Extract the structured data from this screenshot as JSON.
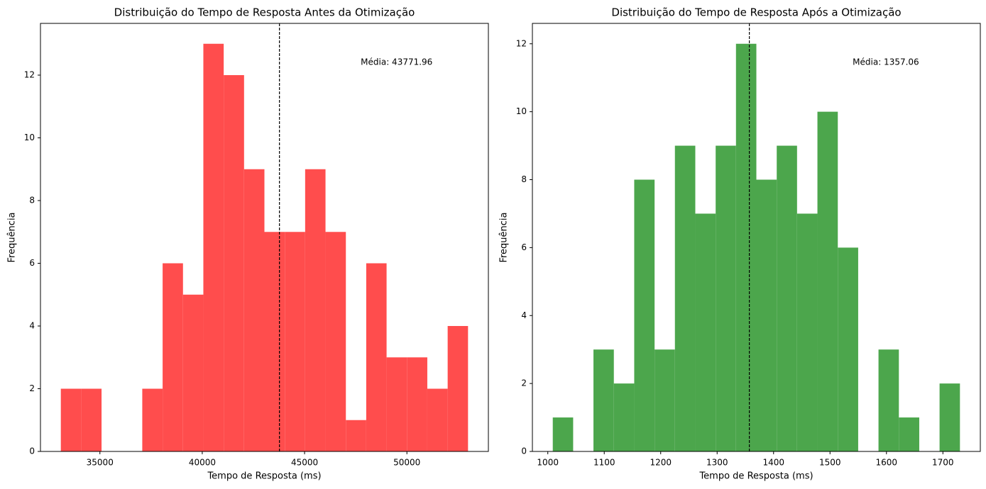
{
  "chart_data": [
    {
      "type": "histogram",
      "title": "Distribuição do Tempo de Resposta Antes da Otimização",
      "xlabel": "Tempo de Resposta (ms)",
      "ylabel": "Frequência",
      "bins": [
        33090,
        34084.8,
        35079.6,
        36074.4,
        37069.2,
        38064,
        39058.8,
        40053.6,
        41048.4,
        42043.2,
        43038,
        44032.8,
        45027.6,
        46022.4,
        47017.2,
        48012,
        49006.8,
        50001.6,
        50996.4,
        51991.2,
        52986
      ],
      "counts": [
        2,
        2,
        0,
        0,
        2,
        6,
        5,
        13,
        12,
        9,
        7,
        7,
        9,
        7,
        1,
        6,
        3,
        3,
        2,
        4
      ],
      "color": "#ff4d4d",
      "xlim": [
        32095,
        53981
      ],
      "ylim": [
        0,
        13.65
      ],
      "xticks": [
        35000,
        40000,
        45000,
        50000
      ],
      "yticks": [
        0,
        2,
        4,
        6,
        8,
        10,
        12
      ],
      "mean": 43771.96,
      "annotation": "Média: 43771.96"
    },
    {
      "type": "histogram",
      "title": "Distribuição do Tempo de Resposta Após a Otimização",
      "xlabel": "Tempo de Resposta (ms)",
      "ylabel": "Frequência",
      "bins": [
        1008.8,
        1044.9,
        1080.9,
        1117.0,
        1153.1,
        1189.2,
        1225.2,
        1261.3,
        1297.4,
        1333.4,
        1369.5,
        1405.6,
        1441.6,
        1477.7,
        1513.8,
        1549.9,
        1585.9,
        1622.0,
        1658.1,
        1694.1,
        1730.2
      ],
      "counts": [
        1,
        0,
        3,
        2,
        8,
        3,
        9,
        7,
        9,
        12,
        8,
        9,
        7,
        10,
        6,
        0,
        3,
        1,
        0,
        2
      ],
      "color": "#4ca64c",
      "xlim": [
        972.7,
        1766.3
      ],
      "ylim": [
        0,
        12.6
      ],
      "xticks": [
        1000,
        1100,
        1200,
        1300,
        1400,
        1500,
        1600,
        1700
      ],
      "yticks": [
        0,
        2,
        4,
        6,
        8,
        10,
        12
      ],
      "mean": 1357.06,
      "annotation": "Média: 1357.06"
    }
  ]
}
